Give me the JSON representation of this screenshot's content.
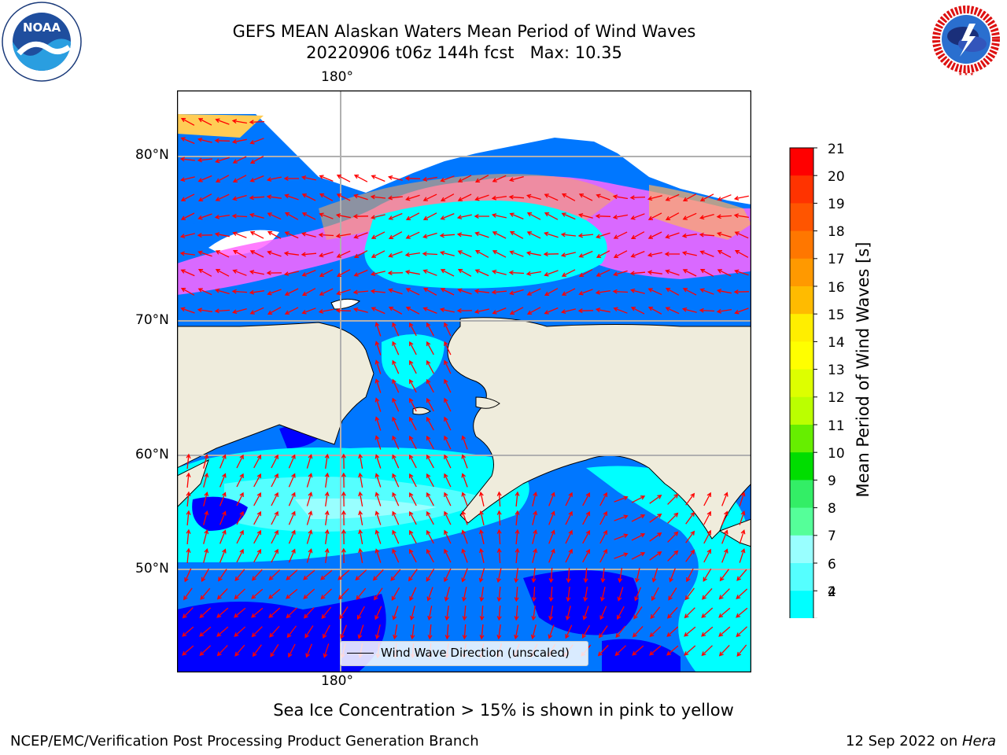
{
  "header": {
    "title": "GEFS MEAN Alaskan Waters Mean Period of Wind Waves",
    "subtitle": "20220906 t06z 144h fcst   Max: 10.35"
  },
  "logos": {
    "left": "NOAA",
    "left_ring": "NATIONAL OCEANIC AND ATMOSPHERIC ADMINISTRATION · U.S. DEPARTMENT OF COMMERCE",
    "right_ring": "NATIONAL WEATHER SERVICE"
  },
  "map": {
    "lon_label_top": "180°",
    "lon_label_bottom": "180°",
    "lat_labels": [
      "80°N",
      "70°N",
      "60°N",
      "50°N"
    ],
    "legend_label": "Wind Wave Direction (unscaled)",
    "colors": {
      "land": "#efecdc",
      "sea_ice": "#ff66ff",
      "arrows": "#ff0000",
      "grid": "#b0b0b0"
    }
  },
  "colorbar": {
    "label": "Mean Period of Wind Waves [s]",
    "ticks": [
      "21",
      "20",
      "19",
      "18",
      "17",
      "16",
      "15",
      "14",
      "13",
      "12",
      "11",
      "10",
      "9",
      "8",
      "7",
      "6",
      "4",
      "2"
    ],
    "colors_top_to_bottom": [
      "#ff0000",
      "#ff3300",
      "#ff5500",
      "#ff7700",
      "#ff9900",
      "#ffbb00",
      "#ffee00",
      "#ffff00",
      "#ddff00",
      "#bbff00",
      "#66ee00",
      "#00dd00",
      "#33ee66",
      "#55ff99",
      "#99ffff",
      "#55ffff",
      "#00ffff",
      "#0077ff"
    ],
    "under_color": "#0000ff"
  },
  "footer": {
    "note": "Sea Ice Concentration > 15% is shown in pink to yellow",
    "credit": "NCEP/EMC/Verification Post Processing Product Generation Branch",
    "date": "12 Sep 2022 on ",
    "host": "Hera"
  }
}
